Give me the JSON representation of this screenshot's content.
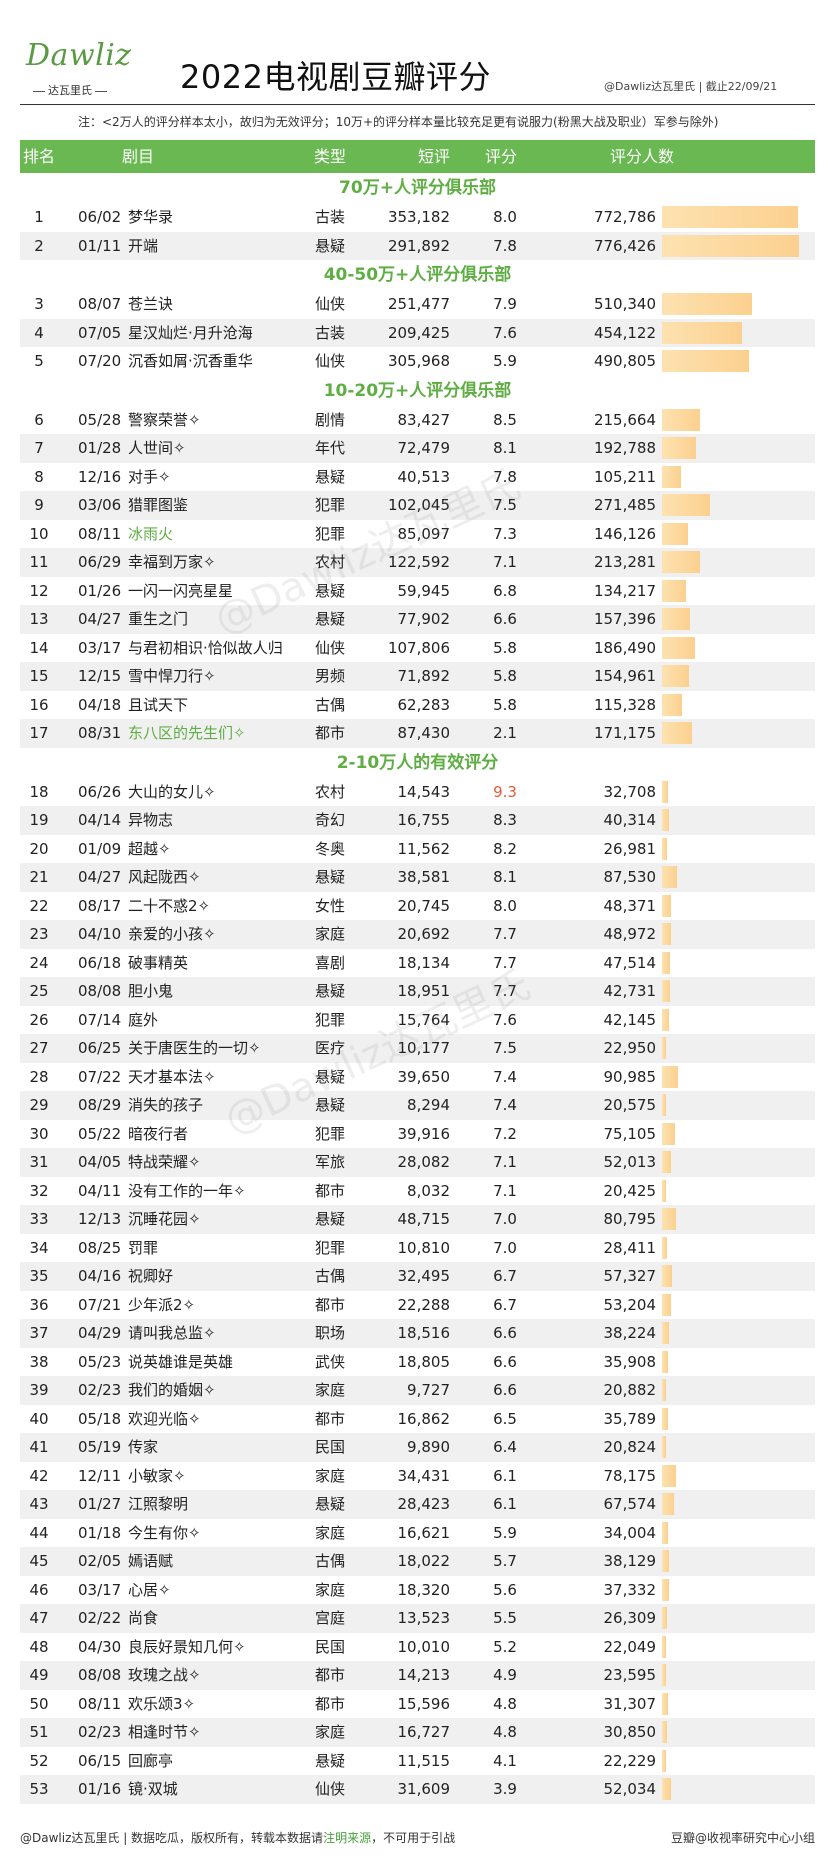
{
  "brand": {
    "logo_word": "Dawliz",
    "logo_sub": "达瓦里氏"
  },
  "header": {
    "title": "2022电视剧豆瓣评分",
    "source": "@Dawliz达瓦里氏 | 截止22/09/21"
  },
  "note": "注：<2万人的评分样本太小，故归为无效评分；10万+的评分样本量比较充足更有说服力(粉黑大战及职业）军参与除外)",
  "columns": {
    "rank": "排名",
    "name": "剧目",
    "type": "类型",
    "short": "短评",
    "score": "评分",
    "raters": "评分人数"
  },
  "colors": {
    "header_green": "#69b851",
    "section_green": "#5fae44",
    "bar": "#fbd08f",
    "highlight_red": "#e05a3a"
  },
  "watermark": "@Dawliz达瓦里氏",
  "chart_data": {
    "type": "table",
    "bar_field": "raters",
    "bar_max": 776426,
    "sections": [
      {
        "title": "70万+人评分俱乐部",
        "rows": [
          {
            "rank": "1",
            "date": "06/02",
            "name": "梦华录",
            "type": "古装",
            "short": "353,182",
            "score": "8.0",
            "raters": "772,786",
            "raters_value": 772786
          },
          {
            "rank": "2",
            "date": "01/11",
            "name": "开端",
            "type": "悬疑",
            "short": "291,892",
            "score": "7.8",
            "raters": "776,426",
            "raters_value": 776426
          }
        ]
      },
      {
        "title": "40-50万+人评分俱乐部",
        "rows": [
          {
            "rank": "3",
            "date": "08/07",
            "name": "苍兰诀",
            "type": "仙侠",
            "short": "251,477",
            "score": "7.9",
            "raters": "510,340",
            "raters_value": 510340
          },
          {
            "rank": "4",
            "date": "07/05",
            "name": "星汉灿烂·月升沧海",
            "type": "古装",
            "short": "209,425",
            "score": "7.6",
            "raters": "454,122",
            "raters_value": 454122
          },
          {
            "rank": "5",
            "date": "07/20",
            "name": "沉香如屑·沉香重华",
            "type": "仙侠",
            "short": "305,968",
            "score": "5.9",
            "raters": "490,805",
            "raters_value": 490805
          }
        ]
      },
      {
        "title": "10-20万+人评分俱乐部",
        "rows": [
          {
            "rank": "6",
            "date": "05/28",
            "name": "警察荣誉✧",
            "type": "剧情",
            "short": "83,427",
            "score": "8.5",
            "raters": "215,664",
            "raters_value": 215664
          },
          {
            "rank": "7",
            "date": "01/28",
            "name": "人世间✧",
            "type": "年代",
            "short": "72,479",
            "score": "8.1",
            "raters": "192,788",
            "raters_value": 192788
          },
          {
            "rank": "8",
            "date": "12/16",
            "name": "对手✧",
            "type": "悬疑",
            "short": "40,513",
            "score": "7.8",
            "raters": "105,211",
            "raters_value": 105211
          },
          {
            "rank": "9",
            "date": "03/06",
            "name": "猎罪图鉴",
            "type": "犯罪",
            "short": "102,045",
            "score": "7.5",
            "raters": "271,485",
            "raters_value": 271485
          },
          {
            "rank": "10",
            "date": "08/11",
            "name": "冰雨火",
            "type": "犯罪",
            "short": "85,097",
            "score": "7.3",
            "raters": "146,126",
            "raters_value": 146126,
            "name_green": true
          },
          {
            "rank": "11",
            "date": "06/29",
            "name": "幸福到万家✧",
            "type": "农村",
            "short": "122,592",
            "score": "7.1",
            "raters": "213,281",
            "raters_value": 213281
          },
          {
            "rank": "12",
            "date": "01/26",
            "name": "一闪一闪亮星星",
            "type": "悬疑",
            "short": "59,945",
            "score": "6.8",
            "raters": "134,217",
            "raters_value": 134217
          },
          {
            "rank": "13",
            "date": "04/27",
            "name": "重生之门",
            "type": "悬疑",
            "short": "77,902",
            "score": "6.6",
            "raters": "157,396",
            "raters_value": 157396
          },
          {
            "rank": "14",
            "date": "03/17",
            "name": "与君初相识·恰似故人归",
            "type": "仙侠",
            "short": "107,806",
            "score": "5.8",
            "raters": "186,490",
            "raters_value": 186490
          },
          {
            "rank": "15",
            "date": "12/15",
            "name": "雪中悍刀行✧",
            "type": "男频",
            "short": "71,892",
            "score": "5.8",
            "raters": "154,961",
            "raters_value": 154961
          },
          {
            "rank": "16",
            "date": "04/18",
            "name": "且试天下",
            "type": "古偶",
            "short": "62,283",
            "score": "5.8",
            "raters": "115,328",
            "raters_value": 115328
          },
          {
            "rank": "17",
            "date": "08/31",
            "name": "东八区的先生们✧",
            "type": "都市",
            "short": "87,430",
            "score": "2.1",
            "raters": "171,175",
            "raters_value": 171175,
            "name_green": true
          }
        ]
      },
      {
        "title": "2-10万人的有效评分",
        "rows": [
          {
            "rank": "18",
            "date": "06/26",
            "name": "大山的女儿✧",
            "type": "农村",
            "short": "14,543",
            "score": "9.3",
            "raters": "32,708",
            "raters_value": 32708,
            "score_red": true
          },
          {
            "rank": "19",
            "date": "04/14",
            "name": "异物志",
            "type": "奇幻",
            "short": "16,755",
            "score": "8.3",
            "raters": "40,314",
            "raters_value": 40314
          },
          {
            "rank": "20",
            "date": "01/09",
            "name": "超越✧",
            "type": "冬奥",
            "short": "11,562",
            "score": "8.2",
            "raters": "26,981",
            "raters_value": 26981
          },
          {
            "rank": "21",
            "date": "04/27",
            "name": "风起陇西✧",
            "type": "悬疑",
            "short": "38,581",
            "score": "8.1",
            "raters": "87,530",
            "raters_value": 87530
          },
          {
            "rank": "22",
            "date": "08/17",
            "name": "二十不惑2✧",
            "type": "女性",
            "short": "20,745",
            "score": "8.0",
            "raters": "48,371",
            "raters_value": 48371
          },
          {
            "rank": "23",
            "date": "04/10",
            "name": "亲爱的小孩✧",
            "type": "家庭",
            "short": "20,692",
            "score": "7.7",
            "raters": "48,972",
            "raters_value": 48972
          },
          {
            "rank": "24",
            "date": "06/18",
            "name": "破事精英",
            "type": "喜剧",
            "short": "18,134",
            "score": "7.7",
            "raters": "47,514",
            "raters_value": 47514
          },
          {
            "rank": "25",
            "date": "08/08",
            "name": "胆小鬼",
            "type": "悬疑",
            "short": "18,951",
            "score": "7.7",
            "raters": "42,731",
            "raters_value": 42731
          },
          {
            "rank": "26",
            "date": "07/14",
            "name": "庭外",
            "type": "犯罪",
            "short": "15,764",
            "score": "7.6",
            "raters": "42,145",
            "raters_value": 42145
          },
          {
            "rank": "27",
            "date": "06/25",
            "name": "关于唐医生的一切✧",
            "type": "医疗",
            "short": "10,177",
            "score": "7.5",
            "raters": "22,950",
            "raters_value": 22950
          },
          {
            "rank": "28",
            "date": "07/22",
            "name": "天才基本法✧",
            "type": "悬疑",
            "short": "39,650",
            "score": "7.4",
            "raters": "90,985",
            "raters_value": 90985
          },
          {
            "rank": "29",
            "date": "08/29",
            "name": "消失的孩子",
            "type": "悬疑",
            "short": "8,294",
            "score": "7.4",
            "raters": "20,575",
            "raters_value": 20575
          },
          {
            "rank": "30",
            "date": "05/22",
            "name": "暗夜行者",
            "type": "犯罪",
            "short": "39,916",
            "score": "7.2",
            "raters": "75,105",
            "raters_value": 75105
          },
          {
            "rank": "31",
            "date": "04/05",
            "name": "特战荣耀✧",
            "type": "军旅",
            "short": "28,082",
            "score": "7.1",
            "raters": "52,013",
            "raters_value": 52013
          },
          {
            "rank": "32",
            "date": "04/11",
            "name": "没有工作的一年✧",
            "type": "都市",
            "short": "8,032",
            "score": "7.1",
            "raters": "20,425",
            "raters_value": 20425
          },
          {
            "rank": "33",
            "date": "12/13",
            "name": "沉睡花园✧",
            "type": "悬疑",
            "short": "48,715",
            "score": "7.0",
            "raters": "80,795",
            "raters_value": 80795
          },
          {
            "rank": "34",
            "date": "08/25",
            "name": "罚罪",
            "type": "犯罪",
            "short": "10,810",
            "score": "7.0",
            "raters": "28,411",
            "raters_value": 28411
          },
          {
            "rank": "35",
            "date": "04/16",
            "name": "祝卿好",
            "type": "古偶",
            "short": "32,495",
            "score": "6.7",
            "raters": "57,327",
            "raters_value": 57327
          },
          {
            "rank": "36",
            "date": "07/21",
            "name": "少年派2✧",
            "type": "都市",
            "short": "22,288",
            "score": "6.7",
            "raters": "53,204",
            "raters_value": 53204
          },
          {
            "rank": "37",
            "date": "04/29",
            "name": "请叫我总监✧",
            "type": "职场",
            "short": "18,516",
            "score": "6.6",
            "raters": "38,224",
            "raters_value": 38224
          },
          {
            "rank": "38",
            "date": "05/23",
            "name": "说英雄谁是英雄",
            "type": "武侠",
            "short": "18,805",
            "score": "6.6",
            "raters": "35,908",
            "raters_value": 35908
          },
          {
            "rank": "39",
            "date": "02/23",
            "name": "我们的婚姻✧",
            "type": "家庭",
            "short": "9,727",
            "score": "6.6",
            "raters": "20,882",
            "raters_value": 20882
          },
          {
            "rank": "40",
            "date": "05/18",
            "name": "欢迎光临✧",
            "type": "都市",
            "short": "16,862",
            "score": "6.5",
            "raters": "35,789",
            "raters_value": 35789
          },
          {
            "rank": "41",
            "date": "05/19",
            "name": "传家",
            "type": "民国",
            "short": "9,890",
            "score": "6.4",
            "raters": "20,824",
            "raters_value": 20824
          },
          {
            "rank": "42",
            "date": "12/11",
            "name": "小敏家✧",
            "type": "家庭",
            "short": "34,431",
            "score": "6.1",
            "raters": "78,175",
            "raters_value": 78175
          },
          {
            "rank": "43",
            "date": "01/27",
            "name": "江照黎明",
            "type": "悬疑",
            "short": "28,423",
            "score": "6.1",
            "raters": "67,574",
            "raters_value": 67574
          },
          {
            "rank": "44",
            "date": "01/18",
            "name": "今生有你✧",
            "type": "家庭",
            "short": "16,621",
            "score": "5.9",
            "raters": "34,004",
            "raters_value": 34004
          },
          {
            "rank": "45",
            "date": "02/05",
            "name": "嫣语赋",
            "type": "古偶",
            "short": "18,022",
            "score": "5.7",
            "raters": "38,129",
            "raters_value": 38129
          },
          {
            "rank": "46",
            "date": "03/17",
            "name": "心居✧",
            "type": "家庭",
            "short": "18,320",
            "score": "5.6",
            "raters": "37,332",
            "raters_value": 37332
          },
          {
            "rank": "47",
            "date": "02/22",
            "name": "尚食",
            "type": "宫庭",
            "short": "13,523",
            "score": "5.5",
            "raters": "26,309",
            "raters_value": 26309
          },
          {
            "rank": "48",
            "date": "04/30",
            "name": "良辰好景知几何✧",
            "type": "民国",
            "short": "10,010",
            "score": "5.2",
            "raters": "22,049",
            "raters_value": 22049
          },
          {
            "rank": "49",
            "date": "08/08",
            "name": "玫瑰之战✧",
            "type": "都市",
            "short": "14,213",
            "score": "4.9",
            "raters": "23,595",
            "raters_value": 23595
          },
          {
            "rank": "50",
            "date": "08/11",
            "name": "欢乐颂3✧",
            "type": "都市",
            "short": "15,596",
            "score": "4.8",
            "raters": "31,307",
            "raters_value": 31307
          },
          {
            "rank": "51",
            "date": "02/23",
            "name": "相逢时节✧",
            "type": "家庭",
            "short": "16,727",
            "score": "4.8",
            "raters": "30,850",
            "raters_value": 30850
          },
          {
            "rank": "52",
            "date": "06/15",
            "name": "回廊亭",
            "type": "悬疑",
            "short": "11,515",
            "score": "4.1",
            "raters": "22,229",
            "raters_value": 22229
          },
          {
            "rank": "53",
            "date": "01/16",
            "name": "镜·双城",
            "type": "仙侠",
            "short": "31,609",
            "score": "3.9",
            "raters": "52,034",
            "raters_value": 52034
          }
        ]
      }
    ]
  },
  "footer": {
    "left_a": "@Dawliz达瓦里氏 | 数据吃瓜，版权所有，转载本数据请",
    "left_highlight": "注明来源",
    "left_b": "，不可用于引战",
    "right": "豆瓣@收视率研究中心小组"
  }
}
